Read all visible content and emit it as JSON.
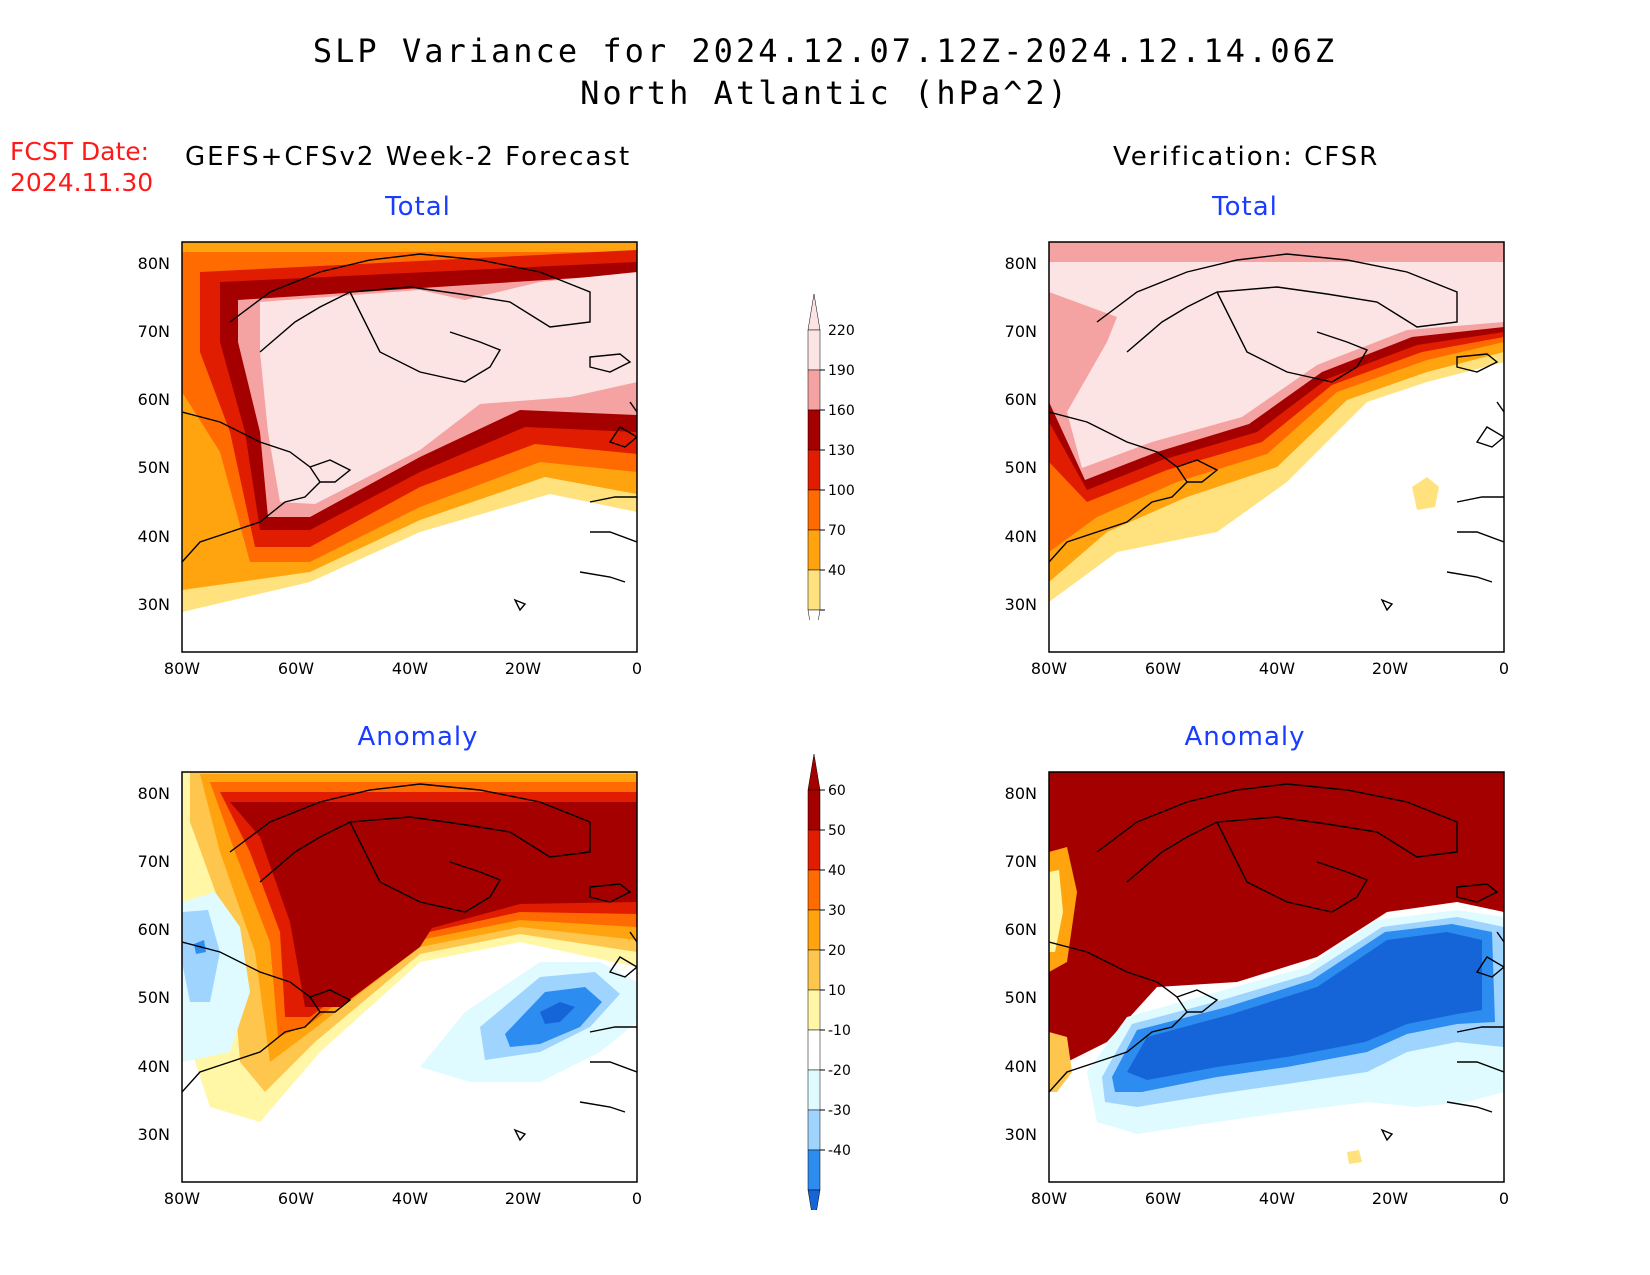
{
  "header": {
    "title_line1": "SLP Variance for 2024.12.07.12Z-2024.12.14.06Z",
    "title_line2": "North Atlantic (hPa^2)",
    "fcst_date_label": "FCST Date:",
    "fcst_date_value": "2024.11.30",
    "left_column_title": "GEFS+CFSv2 Week-2 Forecast",
    "right_column_title": "Verification: CFSR"
  },
  "panels": {
    "forecast_total": {
      "subtitle": "Total"
    },
    "verification_total": {
      "subtitle": "Total"
    },
    "forecast_anomaly": {
      "subtitle": "Anomaly"
    },
    "verification_anomaly": {
      "subtitle": "Anomaly"
    }
  },
  "axes": {
    "lat_labels": [
      "80N",
      "70N",
      "60N",
      "50N",
      "40N",
      "30N"
    ],
    "lon_labels": [
      "80W",
      "60W",
      "40W",
      "20W",
      "0"
    ],
    "lat_range": [
      25,
      85
    ],
    "lon_range": [
      -80,
      0
    ]
  },
  "colorbars": {
    "total": {
      "levels": [
        "220",
        "190",
        "160",
        "130",
        "100",
        "70",
        "40"
      ],
      "colors": [
        "#fde4e4",
        "#f4a2a2",
        "#a50000",
        "#e01d00",
        "#ff6b00",
        "#ffa30f",
        "#ffe27e"
      ]
    },
    "anomaly": {
      "levels": [
        "60",
        "50",
        "40",
        "30",
        "20",
        "10",
        "-10",
        "-20",
        "-30",
        "-40"
      ],
      "colors": [
        "#a50000",
        "#e01d00",
        "#ff6b00",
        "#ffa30f",
        "#ffc64d",
        "#fff6a6",
        "#ffffff",
        "#dffbff",
        "#9fd4ff",
        "#2d8cf0",
        "#1565d8"
      ]
    }
  },
  "colors": {
    "title_red": "#ff1a1a",
    "subtitle_blue": "#1a3cff"
  }
}
